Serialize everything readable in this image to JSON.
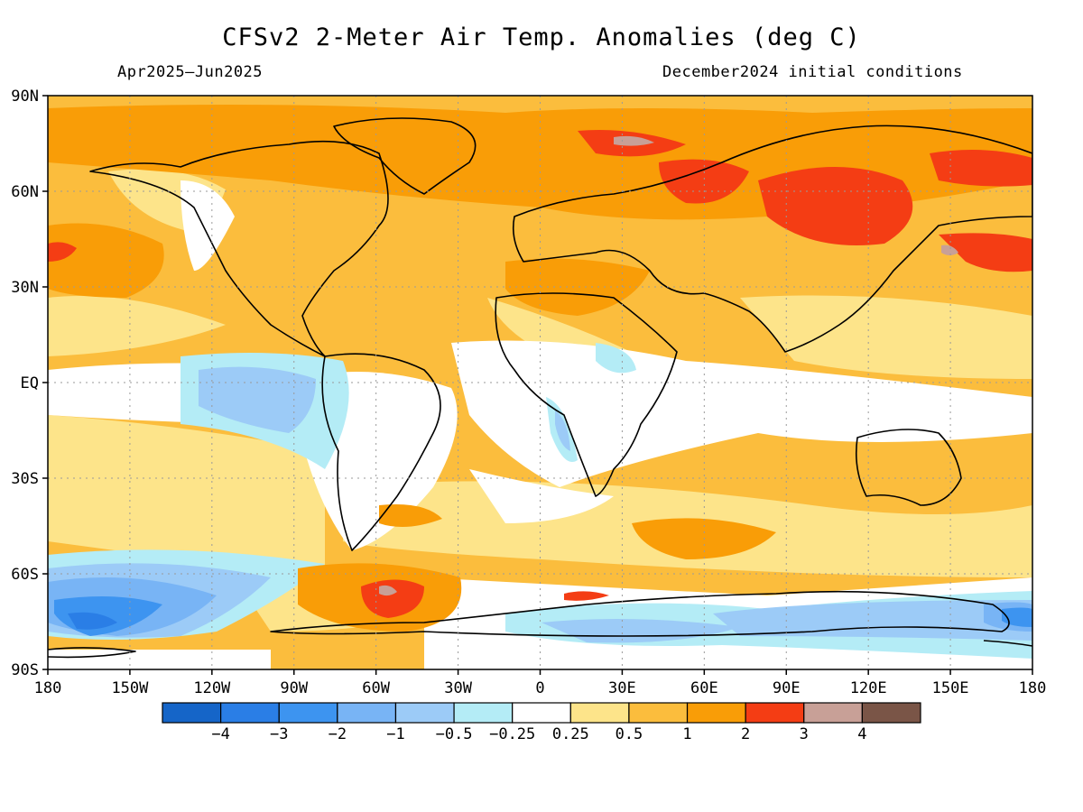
{
  "map": {
    "title": "CFSv2 2-Meter Air Temp. Anomalies (deg C)",
    "period": "Apr2025–Jun2025",
    "initial_conditions": "December2024 initial conditions",
    "lat_ticks": [
      "90N",
      "60N",
      "30N",
      "EQ",
      "30S",
      "60S",
      "90S"
    ],
    "lon_ticks": [
      "180",
      "150W",
      "120W",
      "90W",
      "60W",
      "30W",
      "0",
      "30E",
      "60E",
      "90E",
      "120E",
      "150E",
      "180"
    ],
    "colorbar": {
      "colors": [
        "#1565c8",
        "#2a7ee6",
        "#3d94f0",
        "#78b4f5",
        "#9ccbf7",
        "#b4ecf6",
        "#ffffff",
        "#fde48a",
        "#fbbd3d",
        "#f99d07",
        "#f43d14",
        "#c8a097",
        "#7a5547"
      ],
      "labels": [
        "−4",
        "−3",
        "−2",
        "−1",
        "−0.5",
        "−0.25",
        "0.25",
        "0.5",
        "1",
        "2",
        "3",
        "4"
      ]
    },
    "background_color": "#fbbd3d"
  }
}
